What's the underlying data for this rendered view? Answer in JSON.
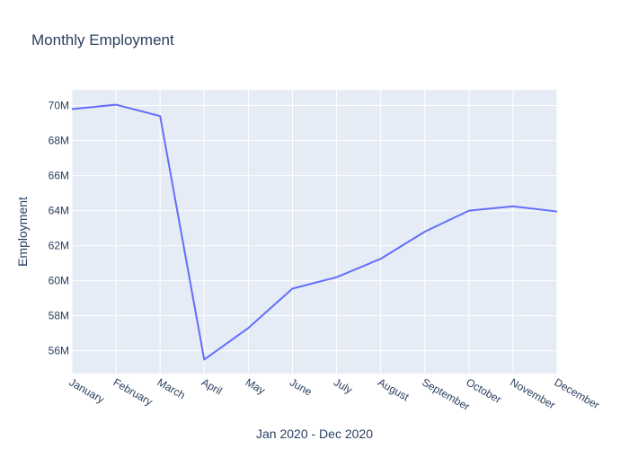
{
  "chart_data": {
    "type": "line",
    "title": "Monthly Employment",
    "xlabel": "Jan 2020 - Dec 2020",
    "ylabel": "Employment",
    "categories": [
      "January",
      "February",
      "March",
      "April",
      "May",
      "June",
      "July",
      "August",
      "September",
      "October",
      "November",
      "December"
    ],
    "series": [
      {
        "values": [
          69.8,
          70.05,
          69.4,
          55.5,
          57.3,
          59.55,
          60.2,
          61.25,
          62.8,
          64.0,
          64.25,
          63.95
        ]
      }
    ],
    "ylim": [
      54.7,
      70.9
    ],
    "yticks": [
      56,
      58,
      60,
      62,
      64,
      66,
      68,
      70
    ],
    "ytick_labels": [
      "56M",
      "58M",
      "60M",
      "62M",
      "64M",
      "66M",
      "68M",
      "70M"
    ],
    "grid": true,
    "legend": "none",
    "colors": {
      "line": "#636efa",
      "plot_background": "#e5ecf6",
      "grid": "#ffffff",
      "text": "#2a3f5f"
    }
  }
}
